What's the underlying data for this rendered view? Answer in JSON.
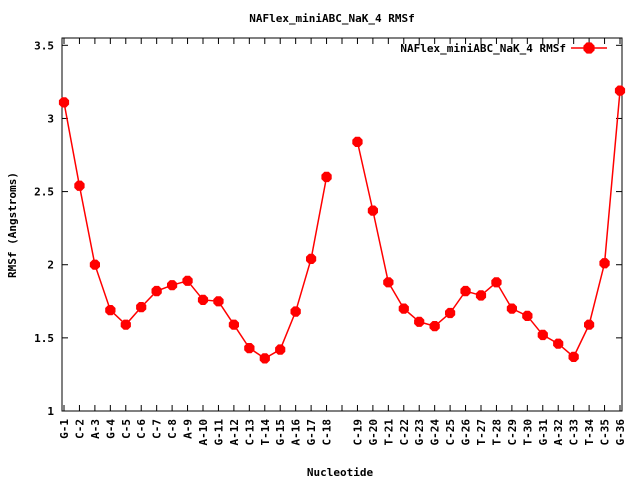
{
  "chart_data": {
    "type": "line",
    "title": "NAFlex_miniABC_NaK_4 RMSf",
    "xlabel": "Nucleotide",
    "ylabel": "RMSf (Angstroms)",
    "ylim": [
      1,
      3.55
    ],
    "yticks": [
      "1",
      "1.5",
      "2",
      "2.5",
      "3",
      "3.5"
    ],
    "ytick_values": [
      1,
      1.5,
      2,
      2.5,
      3,
      3.5
    ],
    "legend_position": "top-right",
    "grid": false,
    "categories": [
      "G-1",
      "C-2",
      "A-3",
      "G-4",
      "C-5",
      "C-6",
      "C-7",
      "C-8",
      "A-9",
      "A-10",
      "G-11",
      "A-12",
      "C-13",
      "T-14",
      "G-15",
      "A-16",
      "G-17",
      "C-18",
      "",
      "C-19",
      "G-20",
      "T-21",
      "C-22",
      "G-23",
      "G-24",
      "C-25",
      "G-26",
      "T-27",
      "T-28",
      "C-29",
      "T-30",
      "G-31",
      "A-32",
      "C-33",
      "T-34",
      "C-35",
      "G-36"
    ],
    "series": [
      {
        "name": "NAFlex_miniABC_NaK_4 RMSf",
        "color": "#ff0000",
        "values": [
          3.11,
          2.54,
          2.0,
          1.69,
          1.59,
          1.71,
          1.82,
          1.86,
          1.89,
          1.76,
          1.75,
          1.59,
          1.43,
          1.36,
          1.42,
          1.68,
          2.04,
          2.6,
          null,
          2.84,
          2.37,
          1.88,
          1.7,
          1.61,
          1.58,
          1.67,
          1.82,
          1.79,
          1.88,
          1.7,
          1.65,
          1.52,
          1.46,
          1.37,
          1.59,
          2.01,
          3.19
        ]
      }
    ]
  }
}
